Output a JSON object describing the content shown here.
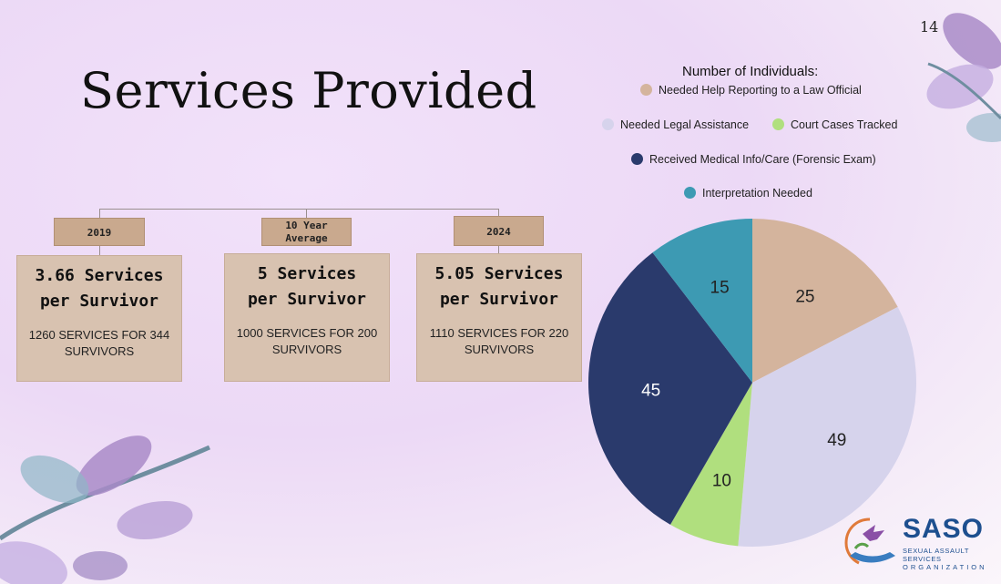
{
  "slide_number": "14",
  "title": "Services Provided",
  "year_labels": [
    "2019",
    "10 Year Average",
    "2024"
  ],
  "cards": [
    {
      "headline_line1": "3.66 Services",
      "headline_line2": "per Survivor",
      "detail": "1260 SERVICES FOR  344 SURVIVORS"
    },
    {
      "headline_line1": "5 Services",
      "headline_line2": "per Survivor",
      "detail": "1000 SERVICES FOR 200 SURVIVORS"
    },
    {
      "headline_line1": "5.05 Services",
      "headline_line2": "per Survivor",
      "detail": "1110 SERVICES FOR 220 SURVIVORS"
    }
  ],
  "chart_data": {
    "type": "pie",
    "title": "Number of Individuals:",
    "categories": [
      "Needed Help Reporting to a Law Official",
      "Needed Legal Assistance",
      "Court Cases Tracked",
      "Received Medical Info/Care (Forensic Exam)",
      "Interpretation Needed"
    ],
    "values": [
      25,
      49,
      10,
      45,
      15
    ],
    "colors": [
      "#d4b49d",
      "#d6d3ec",
      "#b0df7e",
      "#2a3a6c",
      "#3d9ab3"
    ],
    "label_colors": [
      "#222222",
      "#222222",
      "#222222",
      "#ffffff",
      "#222222"
    ],
    "legend_position": "top"
  },
  "logo": {
    "name": "SASO",
    "subtitle_line1": "SEXUAL ASSAULT SERVICES",
    "subtitle_line2": "ORGANIZATION"
  }
}
